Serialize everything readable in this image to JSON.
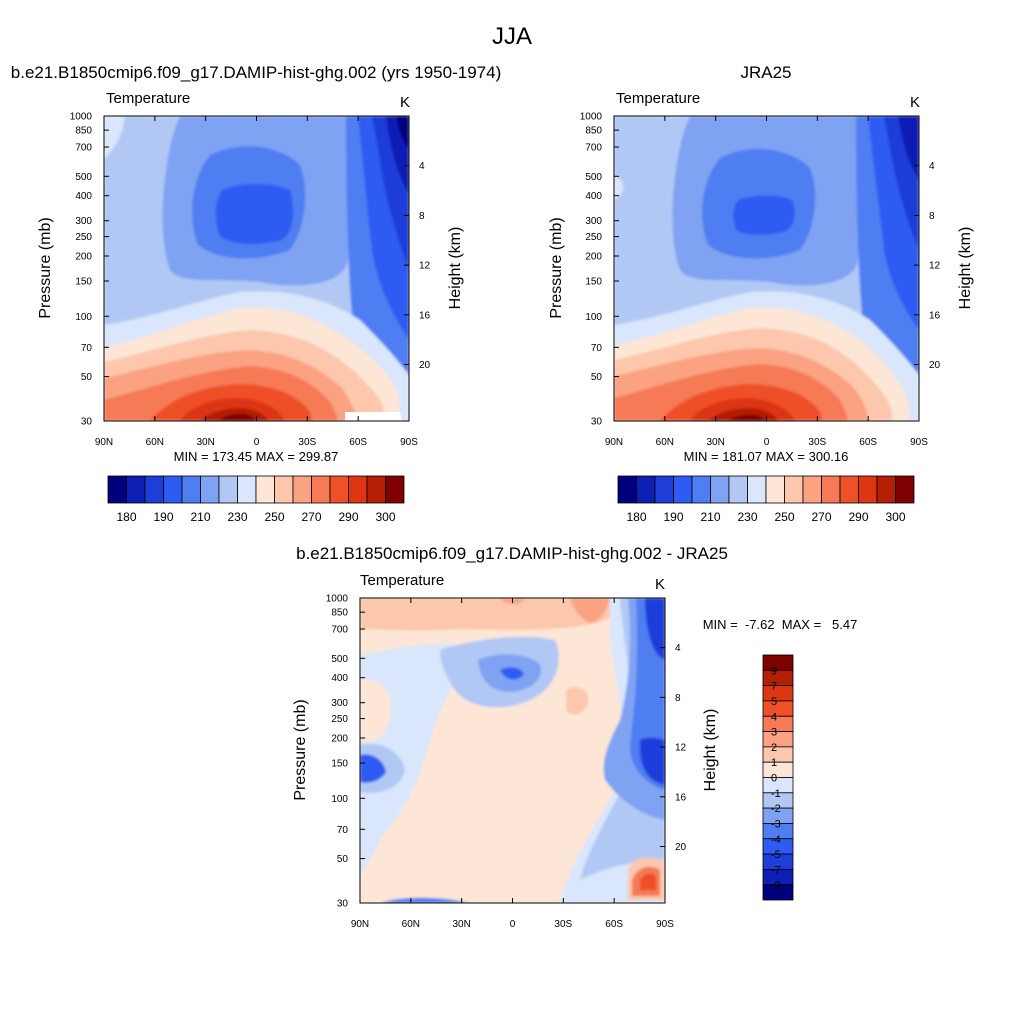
{
  "figure": {
    "title": "JJA"
  },
  "chart_data": [
    {
      "type": "heatmap",
      "panel": "model",
      "title": "b.e21.B1850cmip6.f09_g17.DAMIP-hist-ghg.002 (yrs 1950-1974)",
      "variable": "Temperature",
      "units": "K",
      "ylabel": "Pressure (mb)",
      "y2label": "Height (km)",
      "x_ticks": [
        "90N",
        "60N",
        "30N",
        "0",
        "30S",
        "60S",
        "90S"
      ],
      "x_range": [
        90,
        -90
      ],
      "y_ticks": [
        30,
        50,
        70,
        100,
        150,
        200,
        250,
        300,
        400,
        500,
        700,
        850,
        1000
      ],
      "y_range": [
        1000,
        30
      ],
      "y_scale": "log",
      "y2_ticks": [
        4,
        8,
        12,
        16,
        20
      ],
      "min_max_label": "MIN = 173.45  MAX = 299.87",
      "min": 173.45,
      "max": 299.87,
      "colorbar": {
        "orientation": "horizontal",
        "tick_labels": [
          "180",
          "190",
          "210",
          "230",
          "250",
          "270",
          "290",
          "300"
        ],
        "colors": [
          "#00007f",
          "#0d1fb4",
          "#1f3ed9",
          "#2e5cf2",
          "#4f7ef2",
          "#7fa3f2",
          "#b1c8f5",
          "#d9e6fb",
          "#fde6d6",
          "#fcc7ac",
          "#faa282",
          "#f57a55",
          "#ee5028",
          "#dc3612",
          "#b41f06",
          "#7f0000"
        ]
      }
    },
    {
      "type": "heatmap",
      "panel": "obs",
      "title": "JRA25",
      "variable": "Temperature",
      "units": "K",
      "ylabel": "Pressure (mb)",
      "y2label": "Height (km)",
      "x_ticks": [
        "90N",
        "60N",
        "30N",
        "0",
        "30S",
        "60S",
        "90S"
      ],
      "x_range": [
        90,
        -90
      ],
      "y_ticks": [
        30,
        50,
        70,
        100,
        150,
        200,
        250,
        300,
        400,
        500,
        700,
        850,
        1000
      ],
      "y_range": [
        1000,
        30
      ],
      "y_scale": "log",
      "y2_ticks": [
        4,
        8,
        12,
        16,
        20
      ],
      "min_max_label": "MIN = 181.07  MAX = 300.16",
      "min": 181.07,
      "max": 300.16,
      "colorbar": {
        "orientation": "horizontal",
        "tick_labels": [
          "180",
          "190",
          "210",
          "230",
          "250",
          "270",
          "290",
          "300"
        ],
        "colors": [
          "#00007f",
          "#0d1fb4",
          "#1f3ed9",
          "#2e5cf2",
          "#4f7ef2",
          "#7fa3f2",
          "#b1c8f5",
          "#d9e6fb",
          "#fde6d6",
          "#fcc7ac",
          "#faa282",
          "#f57a55",
          "#ee5028",
          "#dc3612",
          "#b41f06",
          "#7f0000"
        ]
      }
    },
    {
      "type": "heatmap",
      "panel": "diff",
      "title": "b.e21.B1850cmip6.f09_g17.DAMIP-hist-ghg.002 - JRA25",
      "variable": "Temperature",
      "units": "K",
      "ylabel": "Pressure (mb)",
      "y2label": "Height (km)",
      "x_ticks": [
        "90N",
        "60N",
        "30N",
        "0",
        "30S",
        "60S",
        "90S"
      ],
      "x_range": [
        90,
        -90
      ],
      "y_ticks": [
        30,
        50,
        70,
        100,
        150,
        200,
        250,
        300,
        400,
        500,
        700,
        850,
        1000
      ],
      "y_range": [
        1000,
        30
      ],
      "y_scale": "log",
      "y2_ticks": [
        4,
        8,
        12,
        16,
        20
      ],
      "min_max_label": "MIN =  -7.62  MAX =   5.47",
      "min": -7.62,
      "max": 5.47,
      "colorbar": {
        "orientation": "vertical",
        "tick_labels": [
          "9",
          "7",
          "5",
          "4",
          "3",
          "2",
          "1",
          "0",
          "-1",
          "-2",
          "-3",
          "-4",
          "-5",
          "-7",
          "-9"
        ],
        "colors": [
          "#7f0000",
          "#b41f06",
          "#dc3612",
          "#ee5028",
          "#f57a55",
          "#faa282",
          "#fcc7ac",
          "#fde6d6",
          "#d9e6fb",
          "#b1c8f5",
          "#7fa3f2",
          "#4f7ef2",
          "#2e5cf2",
          "#1f3ed9",
          "#0d1fb4",
          "#00007f"
        ]
      }
    }
  ]
}
